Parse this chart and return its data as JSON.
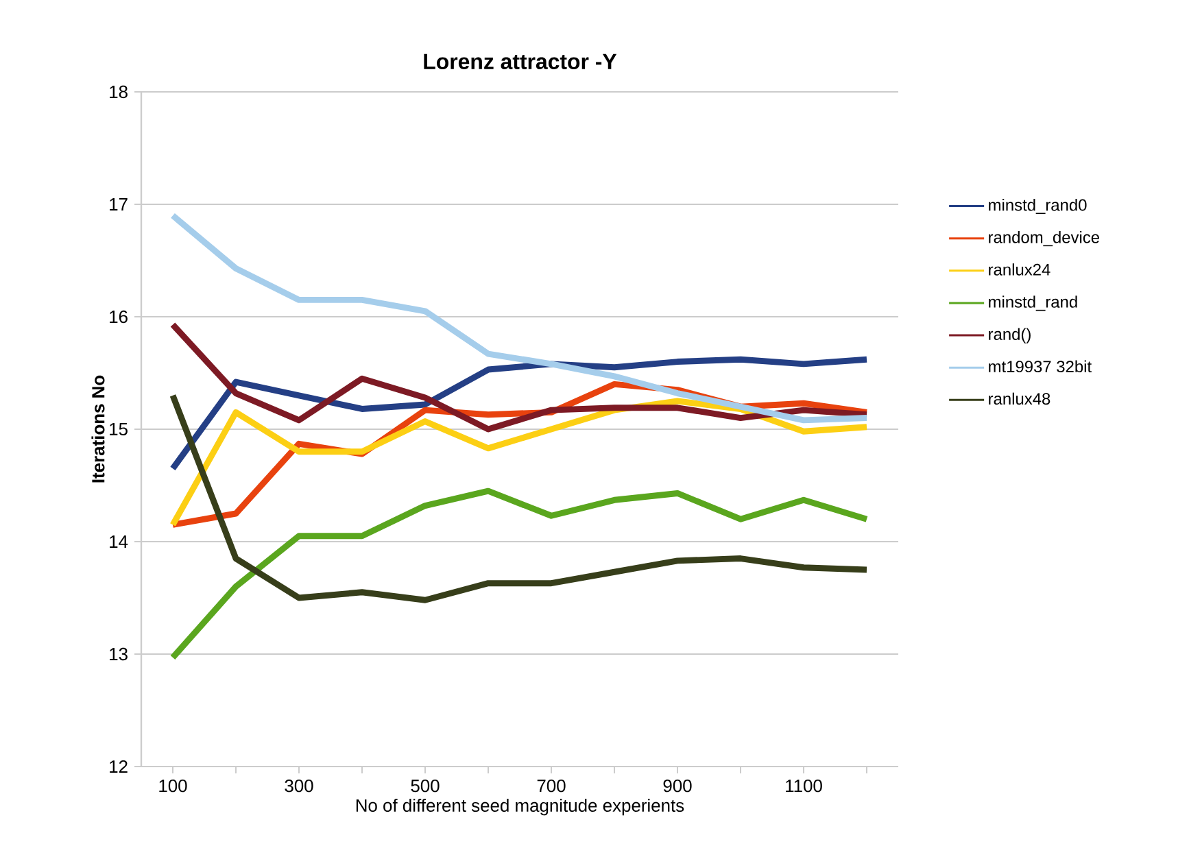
{
  "chart_data": {
    "type": "line",
    "title": "Lorenz attractor -Y",
    "xlabel": "No of different seed magnitude experients",
    "ylabel": "Iterations No",
    "categories": [
      "100",
      null,
      "300",
      null,
      "500",
      null,
      "700",
      null,
      "900",
      null,
      "1100",
      null
    ],
    "ylim": [
      12,
      18
    ],
    "yticks": [
      12,
      13,
      14,
      15,
      16,
      17,
      18
    ],
    "grid": "y",
    "legend": "right",
    "marker": "none",
    "line_style": "solid",
    "series": [
      {
        "name": "minstd_rand0",
        "color": "#243f85",
        "values": [
          14.65,
          15.42,
          15.3,
          15.18,
          15.22,
          15.53,
          15.58,
          15.55,
          15.6,
          15.62,
          15.58,
          15.62
        ]
      },
      {
        "name": "random_device",
        "color": "#e8420e",
        "values": [
          14.15,
          14.25,
          14.87,
          14.78,
          15.17,
          15.13,
          15.15,
          15.4,
          15.35,
          15.2,
          15.23,
          15.15
        ]
      },
      {
        "name": "ranlux24",
        "color": "#fccf14",
        "values": [
          14.15,
          15.15,
          14.8,
          14.8,
          15.07,
          14.83,
          15.0,
          15.17,
          15.25,
          15.18,
          14.98,
          15.02
        ]
      },
      {
        "name": "minstd_rand",
        "color": "#5aa61e",
        "values": [
          12.97,
          13.6,
          14.05,
          14.05,
          14.32,
          14.45,
          14.23,
          14.37,
          14.43,
          14.2,
          14.37,
          14.2
        ]
      },
      {
        "name": "rand()",
        "color": "#7d1a24",
        "values": [
          15.93,
          15.32,
          15.08,
          15.45,
          15.28,
          15.0,
          15.17,
          15.19,
          15.19,
          15.1,
          15.17,
          15.13
        ]
      },
      {
        "name": "mt19937 32bit",
        "color": "#a5cdeb",
        "values": [
          16.9,
          16.43,
          16.15,
          16.15,
          16.05,
          15.67,
          15.58,
          15.47,
          15.32,
          15.2,
          15.08,
          15.1
        ]
      },
      {
        "name": "ranlux48",
        "color": "#373e1a",
        "values": [
          15.3,
          13.85,
          13.5,
          13.55,
          13.48,
          13.63,
          13.63,
          13.73,
          13.83,
          13.85,
          13.77,
          13.75
        ]
      }
    ]
  }
}
